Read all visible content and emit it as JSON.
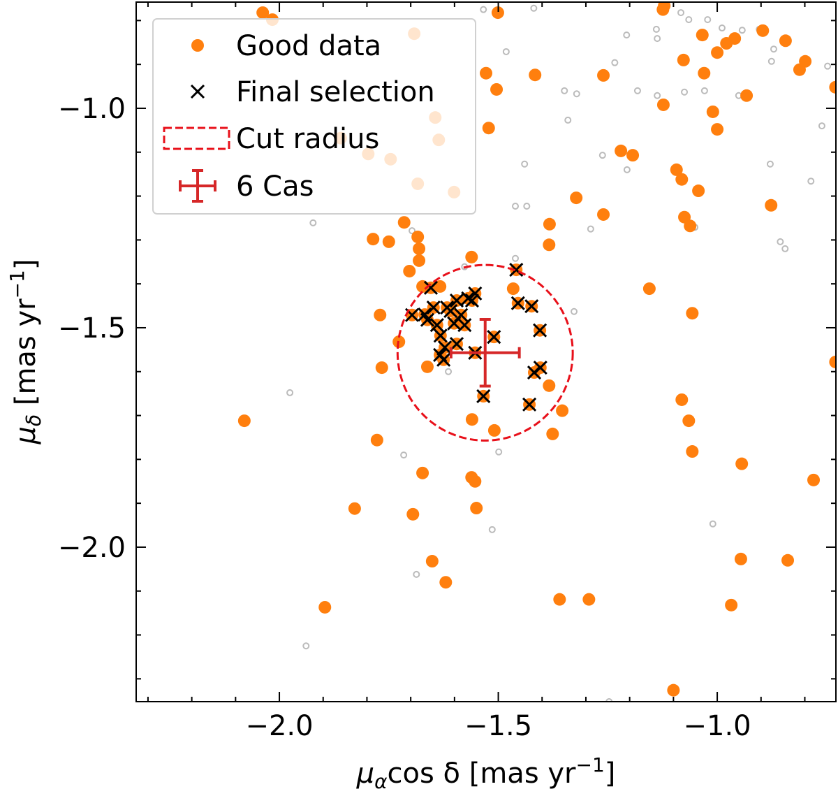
{
  "chart_data": {
    "type": "scatter",
    "title": "",
    "xlabel": {
      "sym": "μ",
      "sub": "α",
      "main": "cos δ [mas yr",
      "sup": "−1",
      "end": "]"
    },
    "ylabel": {
      "sym": "μ",
      "sub": "δ",
      "main": " [mas yr",
      "sup": "−1",
      "end": "]"
    },
    "xlim": [
      -2.327,
      -0.729
    ],
    "ylim": [
      -2.352,
      -0.758
    ],
    "xticks": [
      {
        "value": -2.0,
        "label": "−2.0"
      },
      {
        "value": -1.5,
        "label": "−1.5"
      },
      {
        "value": -1.0,
        "label": "−1.0"
      }
    ],
    "yticks": [
      {
        "value": -1.0,
        "label": "−1.0"
      },
      {
        "value": -1.5,
        "label": "−1.5"
      },
      {
        "value": -2.0,
        "label": "−2.0"
      }
    ],
    "minor_tick_step": 0.1,
    "tick_direction": "in",
    "grid": false,
    "legend_placement": "top-left",
    "colors": {
      "good": "#ff7f0e",
      "background_stars": "#bbbbbb",
      "selection": "#000000",
      "cut": "#e8101a",
      "target": "#d62728"
    },
    "legend": [
      {
        "label": "Good data",
        "marker": "orange-dot"
      },
      {
        "label": "Final selection",
        "marker": "x"
      },
      {
        "label": "Cut radius",
        "marker": "dashed-rect"
      },
      {
        "label": "6 Cas",
        "marker": "errorbar"
      }
    ],
    "series": [
      {
        "name": "Good data",
        "kind": "good",
        "points": [
          [
            -2.038,
            -0.782
          ],
          [
            -2.016,
            -0.798
          ],
          [
            -1.501,
            -0.782
          ],
          [
            -1.124,
            -0.775
          ],
          [
            -1.121,
            -0.766
          ],
          [
            -1.034,
            -0.833
          ],
          [
            -1.0,
            -0.873
          ],
          [
            -0.979,
            -0.852
          ],
          [
            -0.96,
            -0.841
          ],
          [
            -0.896,
            -0.823
          ],
          [
            -0.844,
            -0.846
          ],
          [
            -0.799,
            -0.893
          ],
          [
            -0.812,
            -0.912
          ],
          [
            -0.73,
            -0.952
          ],
          [
            -0.933,
            -0.971
          ],
          [
            -1.03,
            -0.92
          ],
          [
            -1.077,
            -0.89
          ],
          [
            -1.528,
            -0.92
          ],
          [
            -1.504,
            -0.957
          ],
          [
            -1.416,
            -0.924
          ],
          [
            -1.26,
            -0.925
          ],
          [
            -1.123,
            -0.992
          ],
          [
            -1.01,
            -1.008
          ],
          [
            -1.0,
            -1.048
          ],
          [
            -1.522,
            -1.045
          ],
          [
            -1.22,
            -1.097
          ],
          [
            -1.193,
            -1.107
          ],
          [
            -1.093,
            -1.14
          ],
          [
            -1.081,
            -1.162
          ],
          [
            -1.043,
            -1.188
          ],
          [
            -1.322,
            -1.204
          ],
          [
            -0.877,
            -1.221
          ],
          [
            -1.26,
            -1.242
          ],
          [
            -1.075,
            -1.248
          ],
          [
            -1.062,
            -1.268
          ],
          [
            -1.715,
            -1.26
          ],
          [
            -1.786,
            -1.298
          ],
          [
            -1.75,
            -1.304
          ],
          [
            -1.681,
            -1.32
          ],
          [
            -1.684,
            -1.293
          ],
          [
            -1.561,
            -1.339
          ],
          [
            -1.383,
            -1.264
          ],
          [
            -1.384,
            -1.311
          ],
          [
            -1.703,
            -1.371
          ],
          [
            -1.681,
            -1.347
          ],
          [
            -1.673,
            -1.406
          ],
          [
            -1.633,
            -1.406
          ],
          [
            -1.466,
            -1.411
          ],
          [
            -1.155,
            -1.411
          ],
          [
            -1.057,
            -1.467
          ],
          [
            -1.77,
            -1.471
          ],
          [
            -1.727,
            -1.532
          ],
          [
            -1.766,
            -1.591
          ],
          [
            -1.662,
            -1.589
          ],
          [
            -1.384,
            -1.632
          ],
          [
            -1.354,
            -1.689
          ],
          [
            -1.56,
            -1.709
          ],
          [
            -1.509,
            -1.734
          ],
          [
            -1.376,
            -1.742
          ],
          [
            -1.081,
            -1.664
          ],
          [
            -1.065,
            -1.712
          ],
          [
            -1.057,
            -1.782
          ],
          [
            -2.08,
            -1.712
          ],
          [
            -1.777,
            -1.756
          ],
          [
            -0.944,
            -1.81
          ],
          [
            -1.673,
            -1.831
          ],
          [
            -1.561,
            -1.841
          ],
          [
            -1.553,
            -1.85
          ],
          [
            -1.55,
            -1.911
          ],
          [
            -0.78,
            -1.847
          ],
          [
            -1.828,
            -1.912
          ],
          [
            -1.695,
            -1.925
          ],
          [
            -1.651,
            -2.032
          ],
          [
            -1.62,
            -2.08
          ],
          [
            -0.946,
            -2.027
          ],
          [
            -0.839,
            -2.03
          ],
          [
            -1.896,
            -2.137
          ],
          [
            -1.36,
            -2.119
          ],
          [
            -1.293,
            -2.119
          ],
          [
            -0.968,
            -2.132
          ],
          [
            -1.1,
            -2.326
          ],
          [
            -0.73,
            -1.578
          ],
          [
            -1.692,
            -0.83
          ],
          [
            -1.644,
            -1.021
          ],
          [
            -1.601,
            -1.191
          ],
          [
            -1.636,
            -1.072
          ],
          [
            -1.86,
            -1.068
          ],
          [
            -1.797,
            -1.104
          ],
          [
            -1.746,
            -1.116
          ],
          [
            -1.684,
            -1.172
          ]
        ]
      },
      {
        "name": "Final selection",
        "kind": "selection",
        "points": [
          [
            -1.459,
            -1.368
          ],
          [
            -1.654,
            -1.409
          ],
          [
            -1.553,
            -1.422
          ],
          [
            -1.569,
            -1.433
          ],
          [
            -1.595,
            -1.438
          ],
          [
            -1.617,
            -1.454
          ],
          [
            -1.648,
            -1.454
          ],
          [
            -1.668,
            -1.47
          ],
          [
            -1.697,
            -1.471
          ],
          [
            -1.662,
            -1.482
          ],
          [
            -1.585,
            -1.471
          ],
          [
            -1.601,
            -1.49
          ],
          [
            -1.577,
            -1.494
          ],
          [
            -1.64,
            -1.494
          ],
          [
            -1.632,
            -1.518
          ],
          [
            -1.455,
            -1.444
          ],
          [
            -1.424,
            -1.451
          ],
          [
            -1.405,
            -1.506
          ],
          [
            -1.51,
            -1.521
          ],
          [
            -1.595,
            -1.537
          ],
          [
            -1.633,
            -1.562
          ],
          [
            -1.622,
            -1.545
          ],
          [
            -1.553,
            -1.557
          ],
          [
            -1.404,
            -1.591
          ],
          [
            -1.418,
            -1.602
          ],
          [
            -1.534,
            -1.656
          ],
          [
            -1.429,
            -1.675
          ],
          [
            -1.609,
            -1.462
          ],
          [
            -1.56,
            -1.438
          ],
          [
            -1.625,
            -1.573
          ]
        ]
      },
      {
        "kind": "background",
        "points": [
          [
            -1.534,
            -0.775
          ],
          [
            -1.419,
            -0.772
          ],
          [
            -1.083,
            -0.782
          ],
          [
            -1.065,
            -0.798
          ],
          [
            -1.022,
            -0.798
          ],
          [
            -0.989,
            -0.817
          ],
          [
            -0.943,
            -0.822
          ],
          [
            -0.904,
            -0.82
          ],
          [
            -0.871,
            -0.865
          ],
          [
            -0.876,
            -0.893
          ],
          [
            -0.748,
            -0.904
          ],
          [
            -1.207,
            -0.833
          ],
          [
            -1.139,
            -0.82
          ],
          [
            -1.137,
            -0.841
          ],
          [
            -1.482,
            -0.871
          ],
          [
            -1.234,
            -0.896
          ],
          [
            -1.349,
            -0.96
          ],
          [
            -1.321,
            -0.967
          ],
          [
            -1.182,
            -0.96
          ],
          [
            -1.137,
            -0.971
          ],
          [
            -1.029,
            -0.96
          ],
          [
            -1.075,
            -0.963
          ],
          [
            -0.951,
            -0.971
          ],
          [
            -1.341,
            -1.027
          ],
          [
            -0.761,
            -1.04
          ],
          [
            -1.262,
            -1.107
          ],
          [
            -1.44,
            -1.127
          ],
          [
            -1.206,
            -1.14
          ],
          [
            -0.879,
            -1.127
          ],
          [
            -0.786,
            -1.166
          ],
          [
            -1.461,
            -1.223
          ],
          [
            -1.435,
            -1.223
          ],
          [
            -1.923,
            -1.261
          ],
          [
            -1.697,
            -1.279
          ],
          [
            -1.289,
            -1.275
          ],
          [
            -1.051,
            -1.271
          ],
          [
            -0.856,
            -1.304
          ],
          [
            -0.845,
            -1.32
          ],
          [
            -1.577,
            -1.361
          ],
          [
            -1.461,
            -1.342
          ],
          [
            -1.327,
            -1.463
          ],
          [
            -1.976,
            -1.648
          ],
          [
            -1.716,
            -1.79
          ],
          [
            -1.499,
            -1.783
          ],
          [
            -1.614,
            -1.6
          ],
          [
            -1.01,
            -1.947
          ],
          [
            -1.514,
            -1.96
          ],
          [
            -1.687,
            -2.062
          ],
          [
            -1.939,
            -2.225
          ],
          [
            -1.247,
            -2.352
          ]
        ]
      }
    ],
    "target": {
      "name": "6 Cas",
      "x": -1.53,
      "y": -1.557,
      "xerr": 0.078,
      "yerr": 0.076
    },
    "cut_circle": {
      "x": -1.53,
      "y": -1.557,
      "radius": 0.2
    }
  }
}
